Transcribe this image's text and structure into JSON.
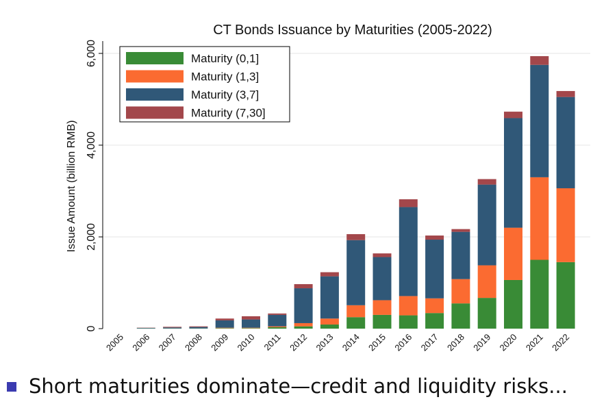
{
  "chart_data": {
    "type": "bar",
    "stacked": true,
    "title": "CT Bonds Issuance by Maturities (2005-2022)",
    "xlabel": "",
    "ylabel": "Issue Amount (billion RMB)",
    "ylim": [
      0,
      6000
    ],
    "yticks": [
      0,
      2000,
      4000,
      6000
    ],
    "ytick_labels": [
      "0",
      "2,000",
      "4,000",
      "6,000"
    ],
    "grid": true,
    "legend_position": "top-left",
    "categories": [
      "2005",
      "2006",
      "2007",
      "2008",
      "2009",
      "2010",
      "2011",
      "2012",
      "2013",
      "2014",
      "2015",
      "2016",
      "2017",
      "2018",
      "2019",
      "2020",
      "2021",
      "2022"
    ],
    "series": [
      {
        "name": "Maturity (0,1]",
        "color": "#398b36",
        "values": [
          0,
          5,
          5,
          5,
          10,
          10,
          30,
          50,
          90,
          250,
          300,
          290,
          340,
          550,
          670,
          1060,
          1500,
          1450
        ]
      },
      {
        "name": "Maturity (1,3]",
        "color": "#fb6b31",
        "values": [
          0,
          0,
          0,
          0,
          10,
          10,
          20,
          70,
          130,
          260,
          320,
          420,
          320,
          530,
          710,
          1140,
          1800,
          1610
        ]
      },
      {
        "name": "Maturity (3,7]",
        "color": "#305878",
        "values": [
          0,
          10,
          20,
          30,
          160,
          180,
          250,
          760,
          920,
          1420,
          940,
          1940,
          1280,
          1030,
          1760,
          2390,
          2450,
          1990
        ]
      },
      {
        "name": "Maturity (7,30]",
        "color": "#a3474b",
        "values": [
          0,
          5,
          15,
          15,
          40,
          70,
          30,
          90,
          90,
          130,
          80,
          170,
          90,
          60,
          120,
          140,
          190,
          130
        ]
      }
    ]
  },
  "slide": {
    "bullet_text": "Short maturities dominate—credit and liquidity risks..."
  }
}
